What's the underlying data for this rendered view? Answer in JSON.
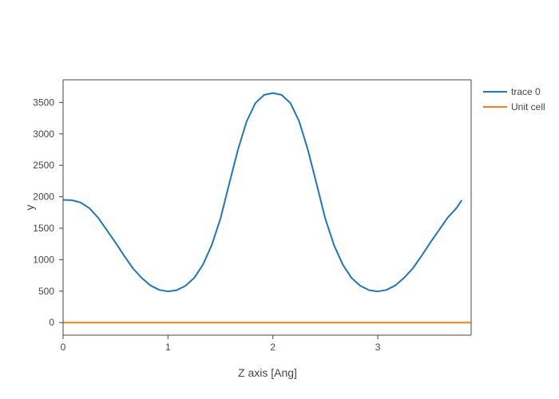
{
  "chart_data": {
    "type": "line",
    "title": "",
    "xlabel": "Z axis [Ang]",
    "ylabel": "y",
    "xlim": [
      0,
      3.89
    ],
    "ylim": [
      -200,
      3860
    ],
    "x_ticks": [
      0,
      1,
      2,
      3
    ],
    "y_ticks": [
      0,
      500,
      1000,
      1500,
      2000,
      2500,
      3000,
      3500
    ],
    "grid": false,
    "legend_position": "top-right-outside",
    "series": [
      {
        "name": "trace 0",
        "color": "#1f77b4",
        "x": [
          0,
          0.083,
          0.167,
          0.25,
          0.333,
          0.417,
          0.5,
          0.583,
          0.667,
          0.75,
          0.833,
          0.917,
          1.0,
          1.083,
          1.167,
          1.25,
          1.333,
          1.417,
          1.5,
          1.583,
          1.667,
          1.75,
          1.833,
          1.917,
          2.0,
          2.083,
          2.167,
          2.25,
          2.333,
          2.417,
          2.5,
          2.583,
          2.667,
          2.75,
          2.833,
          2.917,
          3.0,
          3.083,
          3.167,
          3.25,
          3.333,
          3.417,
          3.5,
          3.583,
          3.667,
          3.75,
          3.8
        ],
        "y": [
          1950,
          1945,
          1910,
          1820,
          1670,
          1470,
          1270,
          1060,
          860,
          710,
          590,
          520,
          495,
          515,
          585,
          710,
          920,
          1230,
          1650,
          2200,
          2750,
          3200,
          3490,
          3620,
          3650,
          3620,
          3490,
          3200,
          2750,
          2200,
          1650,
          1230,
          920,
          710,
          585,
          515,
          495,
          520,
          590,
          710,
          860,
          1060,
          1270,
          1470,
          1670,
          1820,
          1945
        ]
      },
      {
        "name": "Unit cell",
        "color": "#ff7f0e",
        "x": [
          0,
          3.89
        ],
        "y": [
          0,
          0
        ]
      }
    ]
  }
}
